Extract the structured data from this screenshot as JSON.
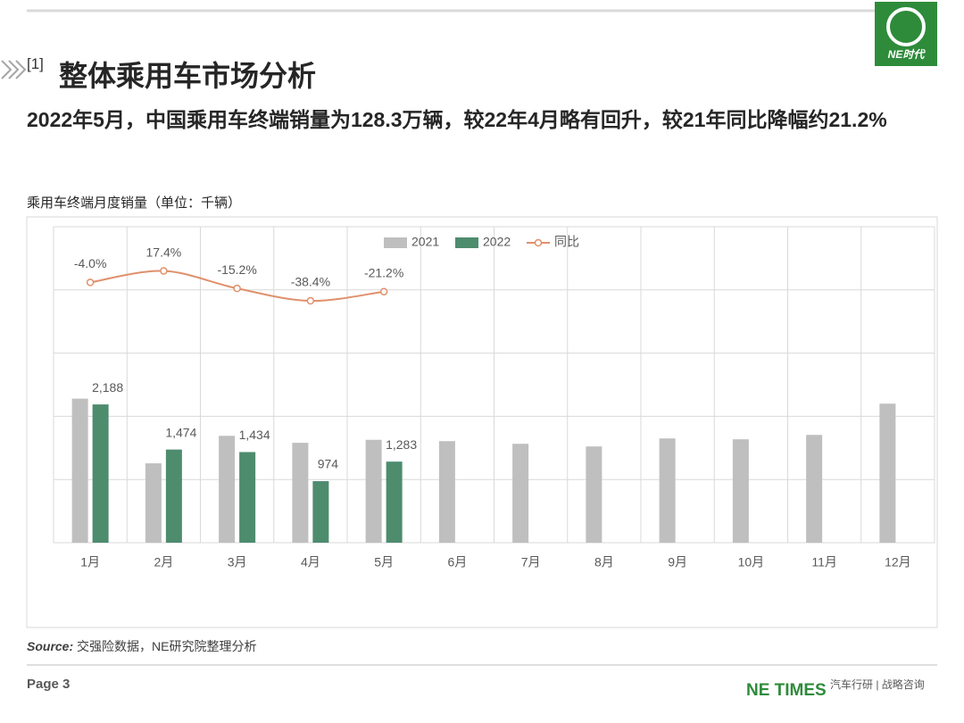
{
  "header": {
    "section": "[1]",
    "title": "整体乘用车市场分析",
    "subtitle": "2022年5月，中国乘用车终端销量为128.3万辆，较22年4月略有回升，较21年同比降幅约21.2%",
    "logo": "NE时代"
  },
  "chart_data": {
    "type": "bar",
    "title": "乘用车终端月度销量（单位：千辆）",
    "categories": [
      "1月",
      "2月",
      "3月",
      "4月",
      "5月",
      "6月",
      "7月",
      "8月",
      "9月",
      "10月",
      "11月",
      "12月"
    ],
    "series": [
      {
        "name": "2021",
        "color": "#bfbfbf",
        "values": [
          2279,
          1256,
          1691,
          1581,
          1628,
          1607,
          1565,
          1523,
          1650,
          1636,
          1706,
          2200
        ]
      },
      {
        "name": "2022",
        "color": "#4e8c6e",
        "values": [
          2188,
          1474,
          1434,
          974,
          1283,
          null,
          null,
          null,
          null,
          null,
          null,
          null
        ],
        "value_labels": [
          "2,188",
          "1,474",
          "1,434",
          "974",
          "1,283",
          null,
          null,
          null,
          null,
          null,
          null,
          null
        ]
      },
      {
        "name": "同比",
        "type": "line",
        "axis": "y2",
        "color": "#e0906c",
        "values": [
          -4.0,
          17.4,
          -15.2,
          -38.4,
          -21.2,
          null,
          null,
          null,
          null,
          null,
          null,
          null
        ],
        "value_labels": [
          "-4.0%",
          "17.4%",
          "-15.2%",
          "-38.4%",
          "-21.2%",
          null,
          null,
          null,
          null,
          null,
          null,
          null
        ]
      }
    ],
    "ylim": [
      0,
      5000
    ],
    "yticks": [
      0,
      1000,
      2000,
      3000,
      4000,
      5000
    ],
    "y2lim": [
      -490,
      100
    ],
    "grid": true,
    "legend": "top"
  },
  "footer": {
    "source_label": "Source:",
    "source": "交强险数据，NE研究院整理分析",
    "page": "Page 3",
    "brand": "NE TIMES",
    "tagline": "汽车行研 | 战略咨询"
  }
}
